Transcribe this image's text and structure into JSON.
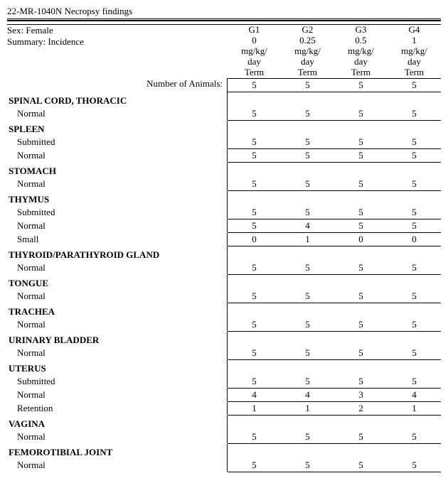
{
  "title": "22-MR-1040N Necropsy findings",
  "summary": {
    "sex_label": "Sex:",
    "sex_value": "Female",
    "summary_label": "Summary:",
    "summary_value": "Incidence"
  },
  "groups": [
    {
      "code": "G1",
      "dose": "0",
      "unit": "mg/kg/",
      "freq": "day",
      "type": "Term"
    },
    {
      "code": "G2",
      "dose": "0.25",
      "unit": "mg/kg/",
      "freq": "day",
      "type": "Term"
    },
    {
      "code": "G3",
      "dose": "0.5",
      "unit": "mg/kg/",
      "freq": "day",
      "type": "Term"
    },
    {
      "code": "G4",
      "dose": "1",
      "unit": "mg/kg/",
      "freq": "day",
      "type": "Term"
    }
  ],
  "num_animals_label": "Number of Animals:",
  "num_animals": [
    "5",
    "5",
    "5",
    "5"
  ],
  "organs": [
    {
      "name": "SPINAL CORD, THORACIC",
      "findings": [
        {
          "label": "Normal",
          "values": [
            "5",
            "5",
            "5",
            "5"
          ],
          "underlined": true
        }
      ]
    },
    {
      "name": "SPLEEN",
      "findings": [
        {
          "label": "Submitted",
          "values": [
            "5",
            "5",
            "5",
            "5"
          ],
          "underlined": true
        },
        {
          "label": "Normal",
          "values": [
            "5",
            "5",
            "5",
            "5"
          ],
          "underlined": true
        }
      ]
    },
    {
      "name": "STOMACH",
      "findings": [
        {
          "label": "Normal",
          "values": [
            "5",
            "5",
            "5",
            "5"
          ],
          "underlined": true
        }
      ]
    },
    {
      "name": "THYMUS",
      "findings": [
        {
          "label": "Submitted",
          "values": [
            "5",
            "5",
            "5",
            "5"
          ],
          "underlined": true
        },
        {
          "label": "Normal",
          "values": [
            "5",
            "4",
            "5",
            "5"
          ],
          "underlined": true
        },
        {
          "label": "Small",
          "values": [
            "0",
            "1",
            "0",
            "0"
          ],
          "underlined": true
        }
      ]
    },
    {
      "name": "THYROID/PARATHYROID GLAND",
      "findings": [
        {
          "label": "Normal",
          "values": [
            "5",
            "5",
            "5",
            "5"
          ],
          "underlined": true
        }
      ]
    },
    {
      "name": "TONGUE",
      "findings": [
        {
          "label": "Normal",
          "values": [
            "5",
            "5",
            "5",
            "5"
          ],
          "underlined": true
        }
      ]
    },
    {
      "name": "TRACHEA",
      "findings": [
        {
          "label": "Normal",
          "values": [
            "5",
            "5",
            "5",
            "5"
          ],
          "underlined": true
        }
      ]
    },
    {
      "name": "URINARY BLADDER",
      "findings": [
        {
          "label": "Normal",
          "values": [
            "5",
            "5",
            "5",
            "5"
          ],
          "underlined": true
        }
      ]
    },
    {
      "name": "UTERUS",
      "findings": [
        {
          "label": "Submitted",
          "values": [
            "5",
            "5",
            "5",
            "5"
          ],
          "underlined": true
        },
        {
          "label": "Normal",
          "values": [
            "4",
            "4",
            "3",
            "4"
          ],
          "underlined": true
        },
        {
          "label": "Retention",
          "values": [
            "1",
            "1",
            "2",
            "1"
          ],
          "underlined": true
        }
      ]
    },
    {
      "name": "VAGINA",
      "findings": [
        {
          "label": "Normal",
          "values": [
            "5",
            "5",
            "5",
            "5"
          ],
          "underlined": true
        }
      ]
    },
    {
      "name": "FEMOROTIBIAL JOINT",
      "findings": [
        {
          "label": "Normal",
          "values": [
            "5",
            "5",
            "5",
            "5"
          ],
          "underlined": true
        }
      ]
    }
  ]
}
